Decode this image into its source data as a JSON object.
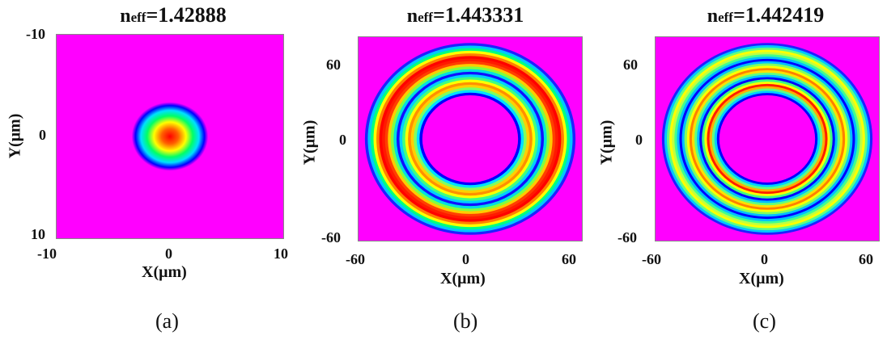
{
  "chart_data": [
    {
      "type": "heatmap",
      "title_prefix": "n",
      "title_sub": "eff",
      "title_value": "=1.42888",
      "xlabel": "X(μm)",
      "ylabel": "Y(μm)",
      "xlim": [
        -10,
        10
      ],
      "ylim": [
        -10,
        10
      ],
      "y_inverted": true,
      "xticks": [
        "-10",
        "0",
        "10"
      ],
      "yticks": [
        "-10",
        "0",
        "10"
      ],
      "mode": "fundamental-core",
      "core_radius": 2.5,
      "caption": "(a)"
    },
    {
      "type": "heatmap",
      "title_prefix": "n",
      "title_sub": "eff",
      "title_value": "=1.443331",
      "xlabel": "X(μm)",
      "ylabel": "Y(μm)",
      "xlim": [
        -70,
        70
      ],
      "ylim": [
        -70,
        70
      ],
      "xticks": [
        "-60",
        "0",
        "60"
      ],
      "yticks": [
        "60",
        "0",
        "-60"
      ],
      "mode": "ring",
      "ring_inner_radius": 30,
      "ring_outer_radius": 66,
      "caption": "(b)"
    },
    {
      "type": "heatmap",
      "title_prefix": "n",
      "title_sub": "eff",
      "title_value": "=1.442419",
      "xlabel": "X(μm)",
      "ylabel": "Y(μm)",
      "xlim": [
        -70,
        70
      ],
      "ylim": [
        -70,
        70
      ],
      "xticks": [
        "-60",
        "0",
        "60"
      ],
      "yticks": [
        "60",
        "0",
        "-60"
      ],
      "mode": "ring",
      "ring_inner_radius": 30,
      "ring_outer_radius": 66,
      "caption": "(c)"
    }
  ],
  "colors": {
    "background": "#ff00ff",
    "colormap": [
      "#ff00ff",
      "#0000ff",
      "#00e5e5",
      "#00ff66",
      "#ffff00",
      "#ff8000",
      "#ff0000"
    ]
  }
}
